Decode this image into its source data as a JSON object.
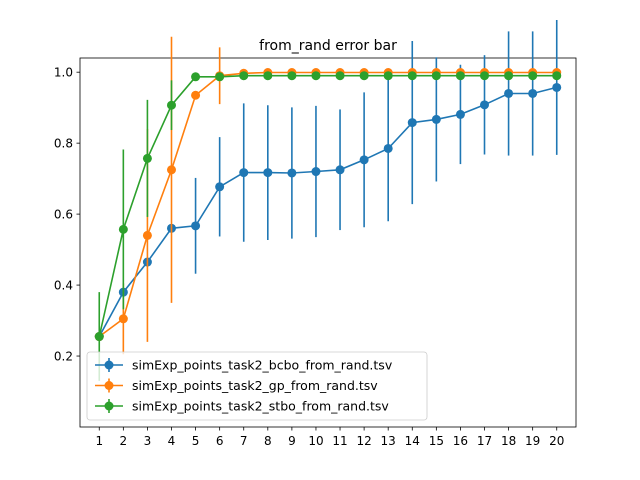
{
  "chart_data": {
    "type": "line",
    "title": "from_rand error bar",
    "xlabel": "",
    "ylabel": "",
    "x": [
      1,
      2,
      3,
      4,
      5,
      6,
      7,
      8,
      9,
      10,
      11,
      12,
      13,
      14,
      15,
      16,
      17,
      18,
      19,
      20
    ],
    "xlim": [
      0.2,
      20.8
    ],
    "ylim": [
      0.0,
      1.04
    ],
    "yticks": [
      0.2,
      0.4,
      0.6,
      0.8,
      1.0
    ],
    "ytick_labels": [
      "0.2",
      "0.4",
      "0.6",
      "0.8",
      "1.0"
    ],
    "xtick_labels": [
      "1",
      "2",
      "3",
      "4",
      "5",
      "6",
      "7",
      "8",
      "9",
      "10",
      "11",
      "12",
      "13",
      "14",
      "15",
      "16",
      "17",
      "18",
      "19",
      "20"
    ],
    "grid": false,
    "legend_position": "lower-left",
    "series": [
      {
        "name": "simExp_points_task2_bcbo_from_rand.tsv",
        "color": "#1f77b4",
        "values": [
          0.255,
          0.38,
          0.465,
          0.56,
          0.567,
          0.677,
          0.717,
          0.717,
          0.716,
          0.72,
          0.725,
          0.753,
          0.785,
          0.858,
          0.867,
          0.881,
          0.908,
          0.94,
          0.94,
          0.957
        ],
        "err": [
          0.0,
          0.0,
          0.0,
          0.0,
          0.135,
          0.14,
          0.195,
          0.19,
          0.185,
          0.185,
          0.17,
          0.19,
          0.205,
          0.23,
          0.175,
          0.14,
          0.14,
          0.175,
          0.175,
          0.19
        ]
      },
      {
        "name": "simExp_points_task2_gp_from_rand.tsv",
        "color": "#ff7f0e",
        "values": [
          0.255,
          0.305,
          0.54,
          0.725,
          0.935,
          0.99,
          0.997,
          0.999,
          0.999,
          0.999,
          0.999,
          0.999,
          0.999,
          0.999,
          0.999,
          0.999,
          0.999,
          0.999,
          0.999,
          0.999
        ],
        "err": [
          0.0,
          0.1,
          0.3,
          0.375,
          0.0,
          0.08,
          0.0,
          0.0,
          0.0,
          0.0,
          0.0,
          0.0,
          0.0,
          0.0,
          0.0,
          0.0,
          0.0,
          0.0,
          0.0,
          0.0
        ]
      },
      {
        "name": "simExp_points_task2_stbo_from_rand.tsv",
        "color": "#2ca02c",
        "values": [
          0.255,
          0.557,
          0.757,
          0.907,
          0.987,
          0.987,
          0.99,
          0.99,
          0.99,
          0.99,
          0.99,
          0.99,
          0.99,
          0.99,
          0.99,
          0.99,
          0.99,
          0.99,
          0.99,
          0.99
        ],
        "err": [
          0.125,
          0.225,
          0.165,
          0.07,
          0.0,
          0.0,
          0.0,
          0.0,
          0.0,
          0.0,
          0.0,
          0.0,
          0.0,
          0.0,
          0.0,
          0.0,
          0.0,
          0.0,
          0.0,
          0.0
        ]
      }
    ]
  }
}
